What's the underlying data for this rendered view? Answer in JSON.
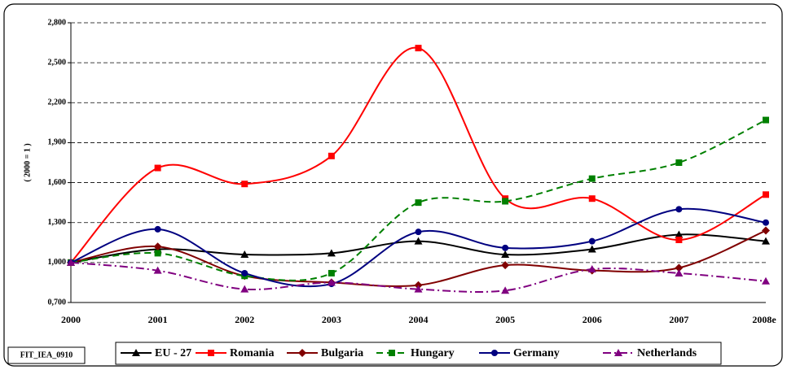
{
  "chart_data": {
    "type": "line",
    "y_label": "( 2000 = 1 )",
    "footnote": "FIT_IEA_0910",
    "categories": [
      "2000",
      "2001",
      "2002",
      "2003",
      "2004",
      "2005",
      "2006",
      "2007",
      "2008e"
    ],
    "ylim": [
      0.7,
      2.8
    ],
    "yticks": [
      {
        "value": 0.7,
        "label": "0,700"
      },
      {
        "value": 1.0,
        "label": "1,000"
      },
      {
        "value": 1.3,
        "label": "1,300"
      },
      {
        "value": 1.6,
        "label": "1,600"
      },
      {
        "value": 1.9,
        "label": "1,900"
      },
      {
        "value": 2.2,
        "label": "2,200"
      },
      {
        "value": 2.5,
        "label": "2,500"
      },
      {
        "value": 2.8,
        "label": "2,800"
      }
    ],
    "grid": true,
    "smooth": true,
    "legend": "bottom",
    "series": [
      {
        "name": "EU - 27",
        "color": "#000000",
        "marker": "triangle",
        "line_style": "solid",
        "values": [
          1.0,
          1.1,
          1.06,
          1.07,
          1.16,
          1.06,
          1.1,
          1.21,
          1.16
        ]
      },
      {
        "name": "Romania",
        "color": "#ff0000",
        "marker": "square",
        "line_style": "solid",
        "values": [
          1.0,
          1.71,
          1.59,
          1.8,
          2.61,
          1.48,
          1.48,
          1.17,
          1.51
        ]
      },
      {
        "name": "Bulgaria",
        "color": "#800000",
        "marker": "diamond",
        "line_style": "solid",
        "values": [
          1.0,
          1.12,
          0.9,
          0.85,
          0.83,
          0.98,
          0.94,
          0.96,
          1.24
        ]
      },
      {
        "name": "Hungary",
        "color": "#008000",
        "marker": "square",
        "line_style": "dashed",
        "values": [
          1.0,
          1.07,
          0.9,
          0.92,
          1.45,
          1.46,
          1.63,
          1.75,
          2.07
        ]
      },
      {
        "name": "Germany",
        "color": "#000080",
        "marker": "circle",
        "line_style": "solid",
        "values": [
          1.0,
          1.25,
          0.92,
          0.84,
          1.23,
          1.11,
          1.16,
          1.4,
          1.3
        ]
      },
      {
        "name": "Netherlands",
        "color": "#800080",
        "marker": "triangle",
        "line_style": "dashdot",
        "values": [
          1.0,
          0.94,
          0.8,
          0.85,
          0.8,
          0.79,
          0.95,
          0.92,
          0.86
        ]
      }
    ]
  }
}
